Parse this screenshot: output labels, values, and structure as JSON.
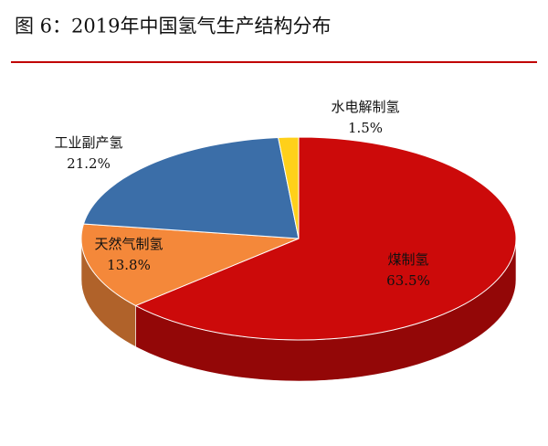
{
  "chart_data": {
    "type": "pie",
    "title": "图 6：2019年中国氢气生产结构分布",
    "categories": [
      "煤制氢",
      "天然气制氢",
      "工业副产氢",
      "水电解制氢"
    ],
    "values": [
      63.5,
      13.8,
      21.2,
      1.5
    ],
    "value_labels": [
      "63.5%",
      "13.8%",
      "21.2%",
      "1.5%"
    ],
    "colors": [
      "#cc0a0a",
      "#f4883a",
      "#3b6ea8",
      "#ffd01a"
    ]
  }
}
